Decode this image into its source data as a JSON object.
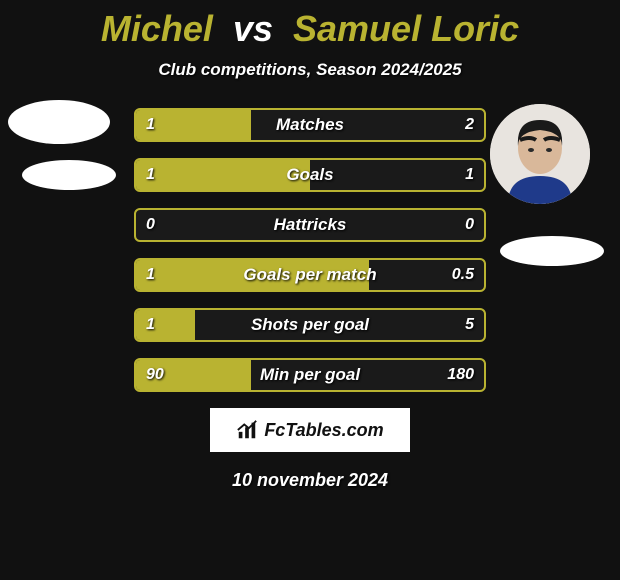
{
  "title": {
    "player1": "Michel",
    "vs": "vs",
    "player2": "Samuel Loric",
    "fontsize": 36,
    "color_p1": "#b9b331",
    "color_vs": "#ffffff",
    "color_p2": "#b9b331"
  },
  "subtitle": {
    "text": "Club competitions, Season 2024/2025",
    "fontsize": 17
  },
  "bar_style": {
    "border_color": "#b9b331",
    "fill_color": "#b9b331",
    "bg": "#1a1a1a",
    "text_color": "#ffffff",
    "height": 30,
    "radius": 6,
    "fontsize": 17
  },
  "avatar": {
    "left_shape": "ellipse",
    "right_shape": "circle"
  },
  "rows": [
    {
      "label": "Matches",
      "left": "1",
      "right": "2",
      "left_pct": 33,
      "right_pct": 0
    },
    {
      "label": "Goals",
      "left": "1",
      "right": "1",
      "left_pct": 50,
      "right_pct": 0
    },
    {
      "label": "Hattricks",
      "left": "0",
      "right": "0",
      "left_pct": 0,
      "right_pct": 0
    },
    {
      "label": "Goals per match",
      "left": "1",
      "right": "0.5",
      "left_pct": 67,
      "right_pct": 0
    },
    {
      "label": "Shots per goal",
      "left": "1",
      "right": "5",
      "left_pct": 17,
      "right_pct": 0
    },
    {
      "label": "Min per goal",
      "left": "90",
      "right": "180",
      "left_pct": 33,
      "right_pct": 0
    }
  ],
  "brand": {
    "text": "FcTables.com",
    "bg": "#ffffff",
    "color": "#111111",
    "fontsize": 18
  },
  "date": {
    "text": "10 november 2024",
    "fontsize": 18
  },
  "colors": {
    "page_bg": "#111111"
  }
}
